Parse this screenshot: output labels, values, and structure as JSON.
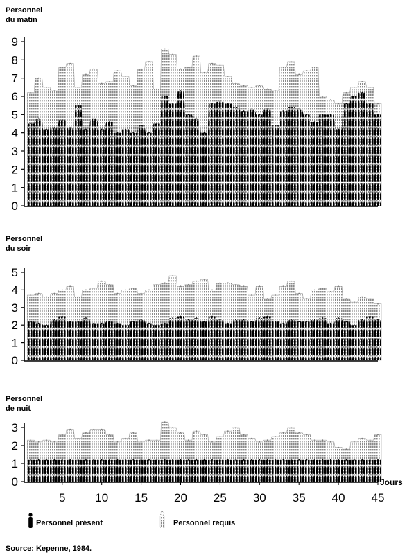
{
  "chart_data": [
    {
      "type": "area",
      "panel": "matin",
      "ylabel": "Personnel\ndu matin",
      "ylim": [
        0,
        9
      ],
      "yticks": [
        0,
        1,
        2,
        3,
        4,
        5,
        6,
        7,
        8,
        9
      ],
      "x": [
        1,
        2,
        3,
        4,
        5,
        6,
        7,
        8,
        9,
        10,
        11,
        12,
        13,
        14,
        15,
        16,
        17,
        18,
        19,
        20,
        21,
        22,
        23,
        24,
        25,
        26,
        27,
        28,
        29,
        30,
        31,
        32,
        33,
        34,
        35,
        36,
        37,
        38,
        39,
        40,
        41,
        42,
        43,
        44,
        45
      ],
      "series": [
        {
          "name": "Personnel requis",
          "values": [
            6.2,
            7.0,
            6.5,
            6.3,
            7.6,
            7.8,
            6.5,
            7.2,
            7.5,
            6.7,
            6.8,
            7.4,
            7.1,
            6.6,
            7.5,
            7.9,
            6.4,
            8.6,
            8.3,
            7.5,
            7.6,
            8.2,
            7.3,
            7.8,
            7.7,
            7.1,
            6.7,
            6.6,
            6.5,
            6.6,
            6.4,
            6.3,
            7.6,
            7.9,
            7.2,
            7.4,
            7.6,
            6.0,
            5.8,
            5.6,
            6.2,
            6.5,
            6.8,
            6.5,
            5.6
          ]
        },
        {
          "name": "Personnel présent",
          "values": [
            4.5,
            4.8,
            4.2,
            4.3,
            4.7,
            4.3,
            5.5,
            4.2,
            4.8,
            4.2,
            4.6,
            4.0,
            4.2,
            4.0,
            4.4,
            4.0,
            4.5,
            6.0,
            5.6,
            6.3,
            5.0,
            4.8,
            4.0,
            5.6,
            5.7,
            5.6,
            5.4,
            5.2,
            5.3,
            5.0,
            5.3,
            4.4,
            5.2,
            5.4,
            5.3,
            5.0,
            4.6,
            5.0,
            5.0,
            4.2,
            5.6,
            6.0,
            6.2,
            5.6,
            5.0
          ]
        }
      ]
    },
    {
      "type": "area",
      "panel": "soir",
      "ylabel": "Personnel\ndu soir",
      "ylim": [
        0,
        5
      ],
      "yticks": [
        0,
        1,
        2,
        3,
        4,
        5
      ],
      "x": [
        1,
        2,
        3,
        4,
        5,
        6,
        7,
        8,
        9,
        10,
        11,
        12,
        13,
        14,
        15,
        16,
        17,
        18,
        19,
        20,
        21,
        22,
        23,
        24,
        25,
        26,
        27,
        28,
        29,
        30,
        31,
        32,
        33,
        34,
        35,
        36,
        37,
        38,
        39,
        40,
        41,
        42,
        43,
        44,
        45
      ],
      "series": [
        {
          "name": "Personnel requis",
          "values": [
            3.7,
            3.8,
            3.6,
            3.8,
            4.0,
            4.2,
            3.6,
            4.0,
            4.1,
            4.5,
            4.3,
            3.8,
            4.0,
            4.1,
            3.8,
            4.0,
            4.3,
            4.4,
            4.8,
            4.2,
            4.3,
            4.5,
            4.6,
            4.0,
            4.4,
            4.4,
            4.3,
            4.2,
            3.7,
            4.2,
            3.5,
            3.7,
            4.2,
            4.5,
            3.8,
            3.5,
            4.0,
            4.1,
            3.9,
            4.2,
            3.5,
            3.3,
            3.6,
            3.5,
            3.2
          ]
        },
        {
          "name": "Personnel présent",
          "values": [
            2.2,
            2.1,
            2.0,
            2.3,
            2.5,
            2.2,
            2.2,
            2.4,
            2.1,
            2.1,
            2.2,
            2.1,
            2.0,
            2.2,
            2.3,
            2.1,
            2.0,
            2.1,
            2.4,
            2.5,
            2.3,
            2.4,
            2.2,
            2.5,
            2.3,
            2.1,
            2.3,
            2.3,
            2.2,
            2.4,
            2.5,
            2.2,
            2.1,
            2.3,
            2.2,
            2.2,
            2.3,
            2.4,
            2.1,
            2.4,
            2.2,
            2.0,
            2.3,
            2.5,
            2.3
          ]
        }
      ]
    },
    {
      "type": "area",
      "panel": "nuit",
      "ylabel": "Personnel\nde nuit",
      "ylim": [
        0,
        3
      ],
      "yticks": [
        0,
        1,
        2,
        3
      ],
      "xlim": [
        0,
        45
      ],
      "xticks": [
        5,
        10,
        15,
        20,
        25,
        30,
        35,
        40,
        45
      ],
      "xlabel": "Jours",
      "x": [
        1,
        2,
        3,
        4,
        5,
        6,
        7,
        8,
        9,
        10,
        11,
        12,
        13,
        14,
        15,
        16,
        17,
        18,
        19,
        20,
        21,
        22,
        23,
        24,
        25,
        26,
        27,
        28,
        29,
        30,
        31,
        32,
        33,
        34,
        35,
        36,
        37,
        38,
        39,
        40,
        41,
        42,
        43,
        44,
        45
      ],
      "series": [
        {
          "name": "Personnel requis",
          "values": [
            2.3,
            2.2,
            2.3,
            2.2,
            2.6,
            2.9,
            2.4,
            2.7,
            2.9,
            2.9,
            2.6,
            2.2,
            2.4,
            2.7,
            2.2,
            2.3,
            2.3,
            3.3,
            3.0,
            2.7,
            2.3,
            2.8,
            2.6,
            2.2,
            2.5,
            2.8,
            3.0,
            2.6,
            2.4,
            2.2,
            2.3,
            2.5,
            2.7,
            3.0,
            2.7,
            2.6,
            2.3,
            2.3,
            2.2,
            1.9,
            1.8,
            2.2,
            2.4,
            2.3,
            2.6
          ]
        },
        {
          "name": "Personnel présent",
          "values": [
            1.2,
            1.2,
            1.2,
            1.2,
            1.2,
            1.2,
            1.2,
            1.2,
            1.2,
            1.2,
            1.2,
            1.2,
            1.2,
            1.2,
            1.2,
            1.2,
            1.2,
            1.2,
            1.2,
            1.2,
            1.2,
            1.2,
            1.2,
            1.2,
            1.2,
            1.2,
            1.2,
            1.2,
            1.2,
            1.2,
            1.2,
            1.2,
            1.2,
            1.2,
            1.2,
            1.2,
            1.2,
            1.2,
            1.2,
            1.2,
            1.2,
            1.2,
            1.2,
            1.2,
            1.2
          ]
        }
      ]
    }
  ],
  "panels": {
    "matin": {
      "label_line1": "Personnel",
      "label_line2": "du matin"
    },
    "soir": {
      "label_line1": "Personnel",
      "label_line2": "du soir"
    },
    "nuit": {
      "label_line1": "Personnel",
      "label_line2": "de nuit"
    }
  },
  "xaxis": {
    "label": "Jours"
  },
  "legend": {
    "present": "Personnel présent",
    "required": "Personnel requis"
  },
  "source": "Source: Kepenne, 1984.",
  "colors": {
    "present": "#000000",
    "required": "#9a9a9a",
    "axis": "#000000"
  }
}
